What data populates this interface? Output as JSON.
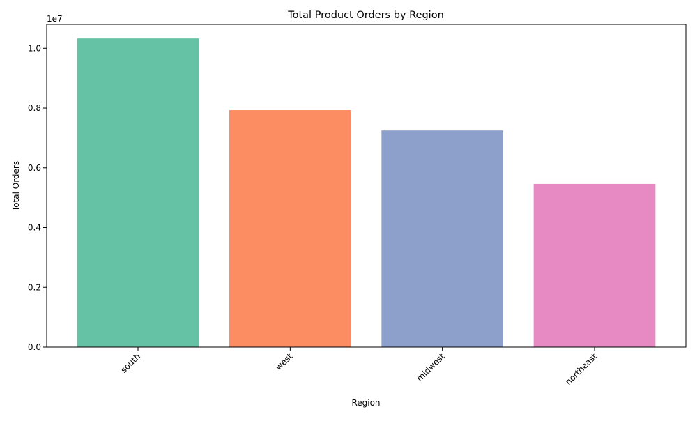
{
  "chart_data": {
    "type": "bar",
    "title": "Total Product Orders by Region",
    "xlabel": "Region",
    "ylabel": "Total Orders",
    "offset_label": "1e7",
    "categories": [
      "south",
      "west",
      "midwest",
      "northeast"
    ],
    "values": [
      10330000,
      7930000,
      7250000,
      5460000
    ],
    "colors": [
      "#66c2a5",
      "#fc8d62",
      "#8da0cb",
      "#e78ac3"
    ],
    "ylim": [
      0,
      10800000
    ],
    "yticks": [
      0,
      2000000,
      4000000,
      6000000,
      8000000,
      10000000
    ],
    "ytick_labels": [
      "0.0",
      "0.2",
      "0.4",
      "0.6",
      "0.8",
      "1.0"
    ],
    "grid": false,
    "legend": "none"
  }
}
